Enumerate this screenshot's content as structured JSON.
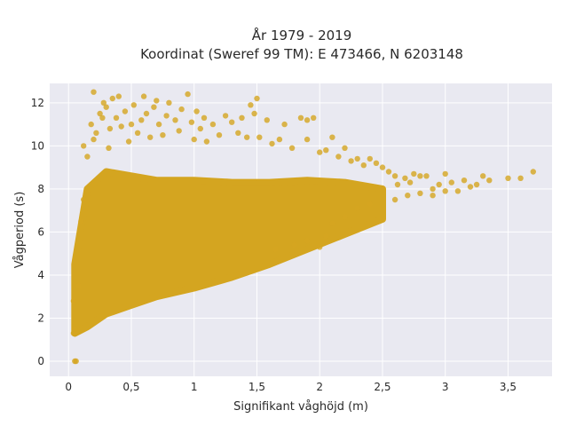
{
  "chart_data": {
    "type": "scatter",
    "title_lines": [
      "År 1979 - 2019",
      "Koordinat (Sweref 99 TM): E 473466, N 6203148"
    ],
    "xlabel": "Signifikant våghöjd (m)",
    "ylabel": "Vågperiod (s)",
    "xlim": [
      -0.15,
      3.85
    ],
    "ylim": [
      -0.7,
      12.9
    ],
    "xticks": [
      0,
      0.5,
      1,
      1.5,
      2,
      2.5,
      3,
      3.5
    ],
    "xtick_labels": [
      "0",
      "0,5",
      "1",
      "1,5",
      "2",
      "2,5",
      "3",
      "3,5"
    ],
    "yticks": [
      0,
      2,
      4,
      6,
      8,
      10,
      12
    ],
    "ytick_labels": [
      "0",
      "2",
      "4",
      "6",
      "8",
      "10",
      "12"
    ],
    "grid": true,
    "colors": {
      "marker": "#d4a520",
      "plot_bg": "#e9e9f1",
      "grid": "#ffffff"
    },
    "dense_region": {
      "x": [
        0.05,
        0.15,
        0.3,
        0.5,
        0.7,
        1.0,
        1.3,
        1.6,
        1.9,
        2.2,
        2.5
      ],
      "y_low": [
        1.3,
        1.6,
        2.2,
        2.6,
        3.0,
        3.4,
        3.9,
        4.5,
        5.2,
        5.9,
        6.6
      ],
      "y_high": [
        4.5,
        8.0,
        8.8,
        8.6,
        8.4,
        8.4,
        8.3,
        8.3,
        8.4,
        8.3,
        8.0
      ]
    },
    "points": [
      [
        0.05,
        0.0
      ],
      [
        0.06,
        0.0
      ],
      [
        0.04,
        1.3
      ],
      [
        0.05,
        1.5
      ],
      [
        0.04,
        2.8
      ],
      [
        0.08,
        3.5
      ],
      [
        0.1,
        6.5
      ],
      [
        0.12,
        7.5
      ],
      [
        0.15,
        9.5
      ],
      [
        0.2,
        10.3
      ],
      [
        0.18,
        11.0
      ],
      [
        0.22,
        10.6
      ],
      [
        0.25,
        11.5
      ],
      [
        0.28,
        12.0
      ],
      [
        0.3,
        11.8
      ],
      [
        0.35,
        12.2
      ],
      [
        0.33,
        10.8
      ],
      [
        0.38,
        11.3
      ],
      [
        0.42,
        10.9
      ],
      [
        0.45,
        11.6
      ],
      [
        0.48,
        10.2
      ],
      [
        0.5,
        11.0
      ],
      [
        0.52,
        11.9
      ],
      [
        0.55,
        10.6
      ],
      [
        0.58,
        11.2
      ],
      [
        0.6,
        12.3
      ],
      [
        0.62,
        11.5
      ],
      [
        0.65,
        10.4
      ],
      [
        0.68,
        11.8
      ],
      [
        0.7,
        12.1
      ],
      [
        0.72,
        11.0
      ],
      [
        0.75,
        10.5
      ],
      [
        0.78,
        11.4
      ],
      [
        0.8,
        12.0
      ],
      [
        0.85,
        11.2
      ],
      [
        0.88,
        10.7
      ],
      [
        0.9,
        11.7
      ],
      [
        0.95,
        12.4
      ],
      [
        0.98,
        11.1
      ],
      [
        1.0,
        10.3
      ],
      [
        1.02,
        11.6
      ],
      [
        1.05,
        10.8
      ],
      [
        1.08,
        11.3
      ],
      [
        1.1,
        10.2
      ],
      [
        1.15,
        11.0
      ],
      [
        1.2,
        10.5
      ],
      [
        1.25,
        11.4
      ],
      [
        1.3,
        11.1
      ],
      [
        1.35,
        10.6
      ],
      [
        1.38,
        11.3
      ],
      [
        1.42,
        10.4
      ],
      [
        1.45,
        11.9
      ],
      [
        1.48,
        11.5
      ],
      [
        1.5,
        12.2
      ],
      [
        1.52,
        10.4
      ],
      [
        1.58,
        11.2
      ],
      [
        1.62,
        10.1
      ],
      [
        1.68,
        10.3
      ],
      [
        1.72,
        11.0
      ],
      [
        1.78,
        9.9
      ],
      [
        1.85,
        11.3
      ],
      [
        1.9,
        11.2
      ],
      [
        1.95,
        11.3
      ],
      [
        1.9,
        10.3
      ],
      [
        2.0,
        9.7
      ],
      [
        2.05,
        9.8
      ],
      [
        2.1,
        10.4
      ],
      [
        2.15,
        9.5
      ],
      [
        2.2,
        9.9
      ],
      [
        2.25,
        9.3
      ],
      [
        2.3,
        9.4
      ],
      [
        2.35,
        9.1
      ],
      [
        2.4,
        9.4
      ],
      [
        2.45,
        9.2
      ],
      [
        2.5,
        9.0
      ],
      [
        2.55,
        8.8
      ],
      [
        2.6,
        8.6
      ],
      [
        2.62,
        8.2
      ],
      [
        2.68,
        8.5
      ],
      [
        2.72,
        8.3
      ],
      [
        2.75,
        8.7
      ],
      [
        2.8,
        8.6
      ],
      [
        2.85,
        8.6
      ],
      [
        2.9,
        8.0
      ],
      [
        2.95,
        8.2
      ],
      [
        3.0,
        8.7
      ],
      [
        3.05,
        8.3
      ],
      [
        3.1,
        7.9
      ],
      [
        3.15,
        8.4
      ],
      [
        3.2,
        8.1
      ],
      [
        3.25,
        8.2
      ],
      [
        3.3,
        8.6
      ],
      [
        3.35,
        8.4
      ],
      [
        3.5,
        8.5
      ],
      [
        3.6,
        8.5
      ],
      [
        3.7,
        8.8
      ],
      [
        2.1,
        6.4
      ],
      [
        2.2,
        6.7
      ],
      [
        2.3,
        7.1
      ],
      [
        2.4,
        7.3
      ],
      [
        2.6,
        7.5
      ],
      [
        2.7,
        7.7
      ],
      [
        2.8,
        7.8
      ],
      [
        2.9,
        7.7
      ],
      [
        3.0,
        7.9
      ],
      [
        1.65,
        5.2
      ],
      [
        1.8,
        5.4
      ],
      [
        1.9,
        5.6
      ],
      [
        2.0,
        5.3
      ],
      [
        2.05,
        5.8
      ],
      [
        0.2,
        12.5
      ],
      [
        0.27,
        11.3
      ],
      [
        0.4,
        12.3
      ],
      [
        0.32,
        9.9
      ],
      [
        0.12,
        10.0
      ]
    ]
  }
}
